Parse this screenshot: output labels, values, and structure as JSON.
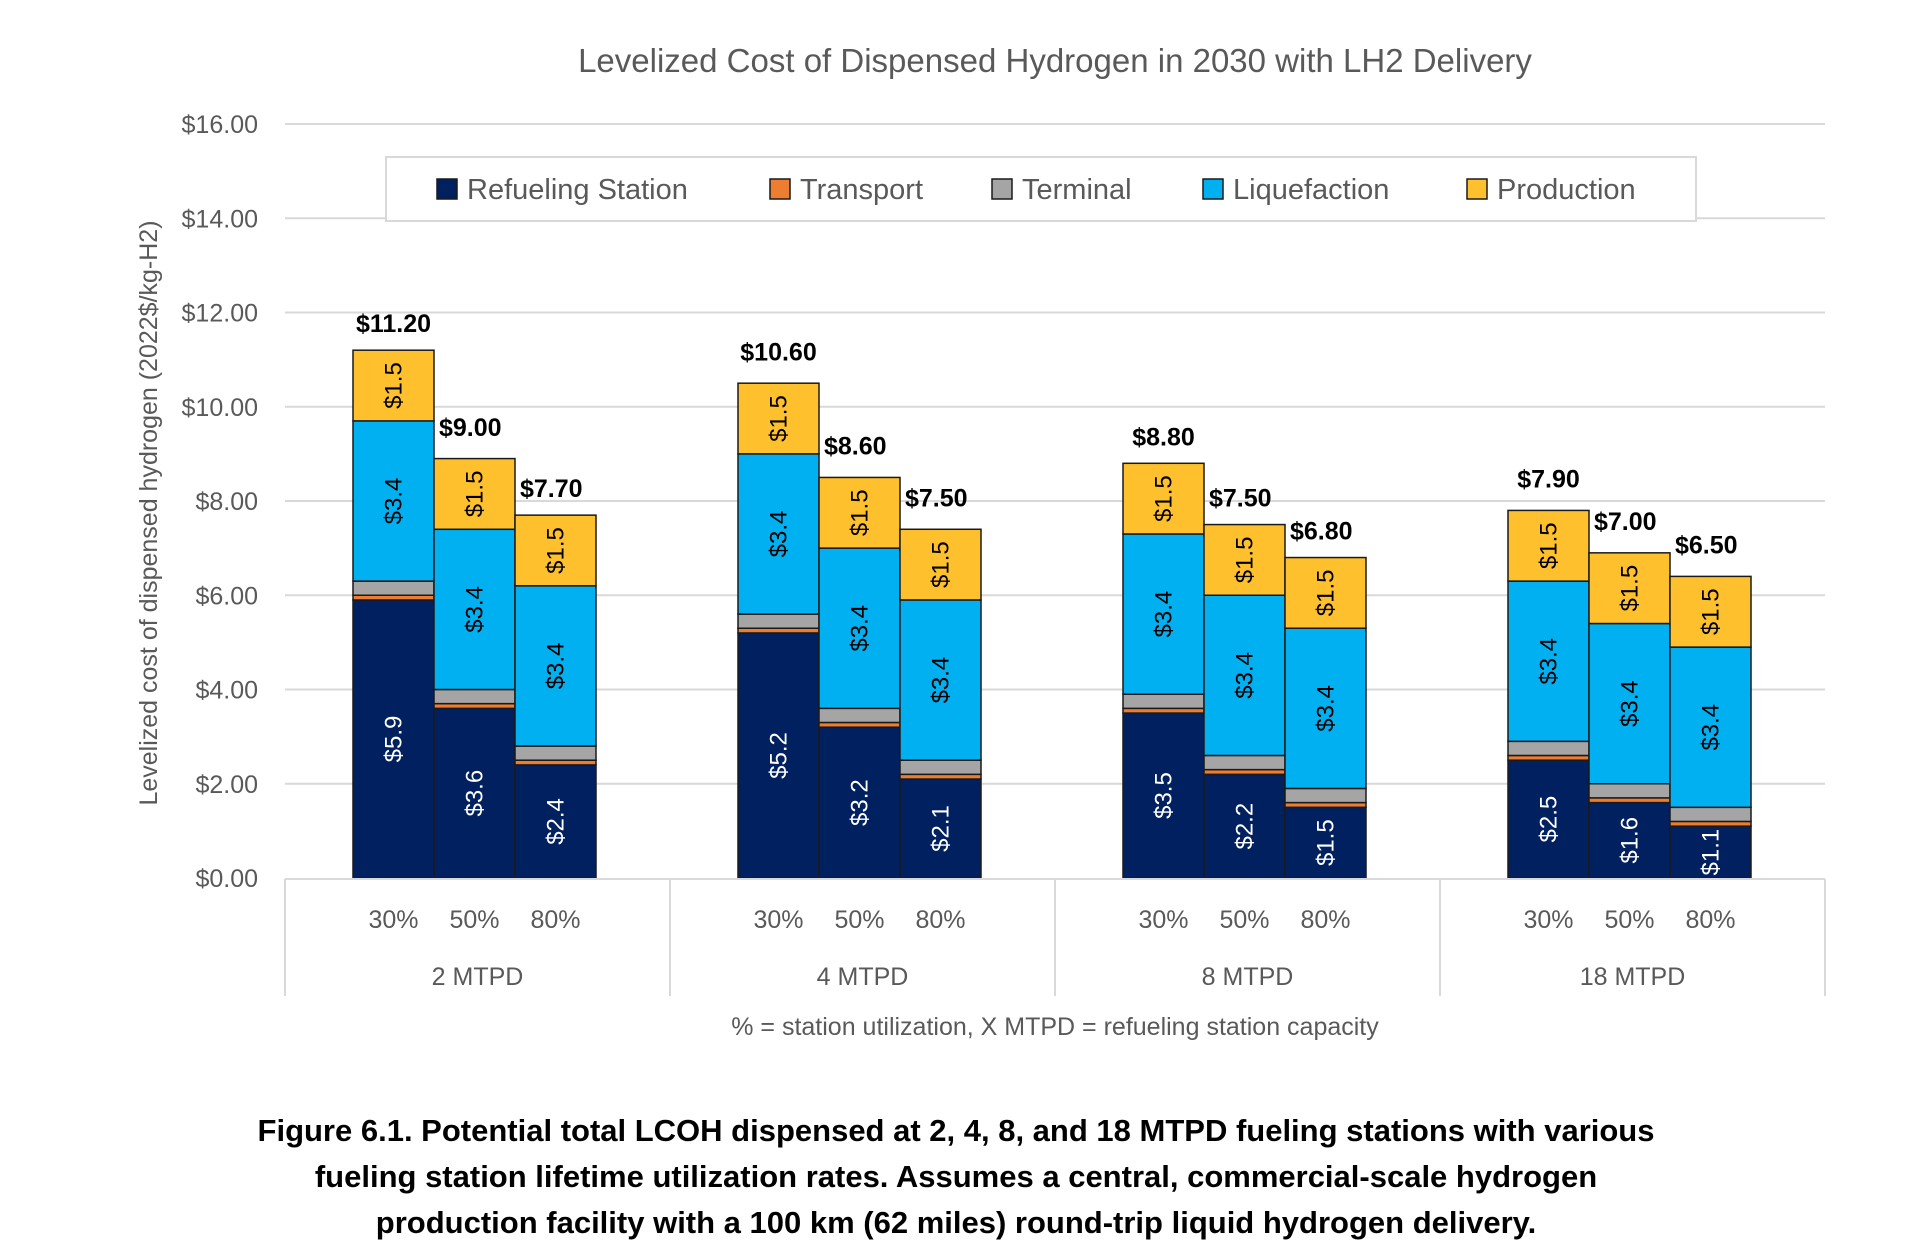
{
  "chart_data": {
    "type": "bar",
    "stacked": true,
    "title": "Levelized Cost of Dispensed Hydrogen in 2030 with LH2 Delivery",
    "xlabel": "% = station utilization, X MTPD = refueling station capacity",
    "ylabel": "Levelized cost of dispensed hydrogen (2022$/kg-H2)",
    "ylim": [
      0,
      16
    ],
    "yticks": [
      0,
      2,
      4,
      6,
      8,
      10,
      12,
      14,
      16
    ],
    "ytick_labels": [
      "$0.00",
      "$2.00",
      "$4.00",
      "$6.00",
      "$8.00",
      "$10.00",
      "$12.00",
      "$14.00",
      "$16.00"
    ],
    "grid": true,
    "legend_position": "top-center",
    "groups": [
      "2 MTPD",
      "4 MTPD",
      "8 MTPD",
      "18 MTPD"
    ],
    "categories": [
      "30%",
      "50%",
      "80%"
    ],
    "series": [
      {
        "name": "Refueling Station",
        "color": "#002060",
        "label_color": "#ffffff",
        "values": [
          [
            5.9,
            3.6,
            2.4
          ],
          [
            5.2,
            3.2,
            2.1
          ],
          [
            3.5,
            2.2,
            1.5
          ],
          [
            2.5,
            1.6,
            1.1
          ]
        ],
        "labels": [
          [
            "$5.9",
            "$3.6",
            "$2.4"
          ],
          [
            "$5.2",
            "$3.2",
            "$2.1"
          ],
          [
            "$3.5",
            "$2.2",
            "$1.5"
          ],
          [
            "$2.5",
            "$1.6",
            "$1.1"
          ]
        ]
      },
      {
        "name": "Transport",
        "color": "#ED7D31",
        "label_color": "#000000",
        "values": [
          [
            0.1,
            0.1,
            0.1
          ],
          [
            0.1,
            0.1,
            0.1
          ],
          [
            0.1,
            0.1,
            0.1
          ],
          [
            0.1,
            0.1,
            0.1
          ]
        ],
        "labels": null
      },
      {
        "name": "Terminal",
        "color": "#A5A5A5",
        "label_color": "#000000",
        "values": [
          [
            0.3,
            0.3,
            0.3
          ],
          [
            0.3,
            0.3,
            0.3
          ],
          [
            0.3,
            0.3,
            0.3
          ],
          [
            0.3,
            0.3,
            0.3
          ]
        ],
        "labels": null
      },
      {
        "name": "Liquefaction",
        "color": "#00B0F0",
        "label_color": "#000000",
        "values": [
          [
            3.4,
            3.4,
            3.4
          ],
          [
            3.4,
            3.4,
            3.4
          ],
          [
            3.4,
            3.4,
            3.4
          ],
          [
            3.4,
            3.4,
            3.4
          ]
        ],
        "labels": [
          [
            "$3.4",
            "$3.4",
            "$3.4"
          ],
          [
            "$3.4",
            "$3.4",
            "$3.4"
          ],
          [
            "$3.4",
            "$3.4",
            "$3.4"
          ],
          [
            "$3.4",
            "$3.4",
            "$3.4"
          ]
        ]
      },
      {
        "name": "Production",
        "color": "#FFC02E",
        "label_color": "#000000",
        "values": [
          [
            1.5,
            1.5,
            1.5
          ],
          [
            1.5,
            1.5,
            1.5
          ],
          [
            1.5,
            1.5,
            1.5
          ],
          [
            1.5,
            1.5,
            1.5
          ]
        ],
        "labels": [
          [
            "$1.5",
            "$1.5",
            "$1.5"
          ],
          [
            "$1.5",
            "$1.5",
            "$1.5"
          ],
          [
            "$1.5",
            "$1.5",
            "$1.5"
          ],
          [
            "$1.5",
            "$1.5",
            "$1.5"
          ]
        ]
      }
    ],
    "totals": [
      [
        11.2,
        9.0,
        7.7
      ],
      [
        10.6,
        8.6,
        7.5
      ],
      [
        8.8,
        7.5,
        6.8
      ],
      [
        7.9,
        7.0,
        6.5
      ]
    ],
    "total_labels": [
      [
        "$11.20",
        "$9.00",
        "$7.70"
      ],
      [
        "$10.60",
        "$8.60",
        "$7.50"
      ],
      [
        "$8.80",
        "$7.50",
        "$6.80"
      ],
      [
        "$7.90",
        "$7.00",
        "$6.50"
      ]
    ]
  },
  "caption": {
    "lines": [
      "Figure 6.1. Potential total LCOH dispensed at 2, 4, 8, and 18 MTPD fueling stations with various",
      "fueling station lifetime utilization rates. Assumes a central, commercial-scale hydrogen",
      "production facility with a 100 km (62 miles) round-trip liquid hydrogen delivery."
    ]
  }
}
